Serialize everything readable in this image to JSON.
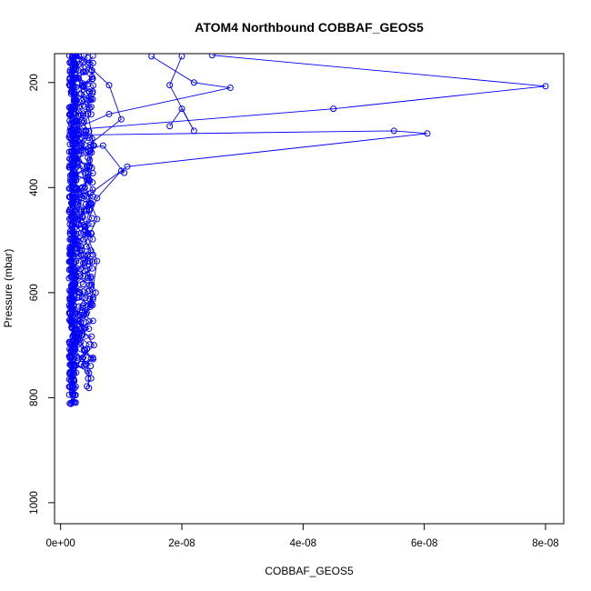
{
  "chart_data": {
    "type": "line",
    "title": "ATOM4 Northbound COBBAF_GEOS5",
    "xlabel": "COBBAF_GEOS5",
    "ylabel": "Pressure (mbar)",
    "xlim": [
      -1e-09,
      8.3e-08
    ],
    "ylim": [
      1040,
      145
    ],
    "y_reversed": true,
    "x_ticks": [
      0,
      2e-08,
      4e-08,
      6e-08,
      8e-08
    ],
    "x_tick_labels": [
      "0e+00",
      "2e-08",
      "4e-08",
      "6e-08",
      "8e-08"
    ],
    "y_ticks": [
      200,
      400,
      600,
      800,
      1000
    ],
    "y_tick_labels": [
      "200",
      "400",
      "600",
      "800",
      "1000"
    ],
    "grid": false,
    "legend": "none",
    "color": "#0000ff",
    "marker": "open-circle",
    "series": [
      {
        "x": [
          2e-09,
          2.2e-09,
          1.8e-09,
          2.5e-09,
          2.1e-09,
          3e-09,
          2.4e-09,
          4.5e-09,
          3.5e-09,
          2.6e-09,
          5e-09,
          2.3e-09,
          1.9e-09,
          2.2e-09,
          1.8e-09,
          2e-09,
          1.7e-09
        ],
        "y": [
          150,
          175,
          200,
          230,
          260,
          300,
          340,
          380,
          420,
          470,
          520,
          570,
          620,
          680,
          740,
          790,
          812
        ]
      },
      {
        "x": [
          1.5e-08,
          2.2e-08,
          2.8e-08,
          8e-09,
          2e-09
        ],
        "y": [
          150,
          200,
          210,
          260,
          290
        ]
      },
      {
        "x": [
          2e-09,
          8e-09,
          1e-08,
          3.5e-09,
          2.5e-09
        ],
        "y": [
          140,
          205,
          270,
          330,
          380
        ]
      },
      {
        "x": [
          2.5e-08,
          8e-08,
          4.5e-08,
          2e-09
        ],
        "y": [
          148,
          207,
          250,
          290
        ]
      },
      {
        "x": [
          2e-09,
          5.5e-08,
          6.05e-08,
          1.1e-08,
          5e-09,
          3e-09
        ],
        "y": [
          300,
          292,
          297,
          360,
          410,
          470
        ]
      },
      {
        "x": [
          2e-08,
          1.8e-08,
          2.2e-08,
          2e-08,
          1.8e-08
        ],
        "y": [
          150,
          205,
          292,
          250,
          283
        ]
      },
      {
        "x": [
          3e-09,
          7e-09,
          1.05e-08,
          1e-08,
          6e-09,
          4e-09
        ],
        "y": [
          330,
          320,
          372,
          368,
          420,
          480
        ]
      },
      {
        "x": [
          2.2e-09,
          4.5e-09,
          5.5e-09,
          4e-09,
          6e-09,
          3.5e-09,
          5.8e-09,
          3e-09,
          5.5e-09,
          2.5e-09
        ],
        "y": [
          160,
          260,
          320,
          400,
          460,
          520,
          600,
          660,
          700,
          738
        ]
      },
      {
        "x": [
          1.5e-09,
          3e-09,
          5e-09,
          4e-09,
          6e-09,
          5e-09,
          3e-09,
          4e-09,
          2e-09
        ],
        "y": [
          300,
          350,
          430,
          480,
          540,
          620,
          680,
          710,
          760
        ]
      }
    ],
    "cloud_note": "dense cluster of points near x 1e-9 to 6e-9 between 150 and 820 mbar"
  }
}
